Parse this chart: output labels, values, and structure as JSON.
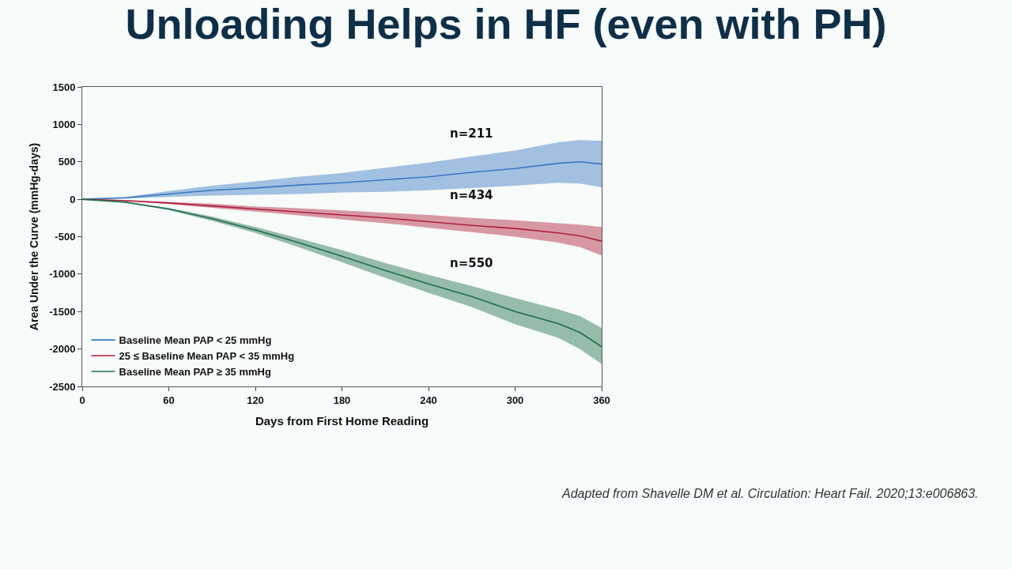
{
  "chart_data": {
    "type": "line",
    "title": "Unloading Helps in HF (even with PH)",
    "xlabel": "Days from First Home Reading",
    "ylabel": "Area Under the Curve (mmHg-days)",
    "x": [
      0,
      30,
      60,
      90,
      120,
      150,
      180,
      210,
      240,
      270,
      300,
      330,
      345,
      360
    ],
    "series": [
      {
        "name": "Baseline Mean PAP < 25 mmHg",
        "color": "#3a78c4",
        "values": [
          0,
          20,
          70,
          120,
          150,
          190,
          220,
          260,
          300,
          360,
          410,
          480,
          500,
          470
        ],
        "upper": [
          0,
          30,
          110,
          180,
          240,
          300,
          350,
          420,
          490,
          570,
          650,
          760,
          790,
          780
        ],
        "lower": [
          0,
          10,
          30,
          50,
          60,
          70,
          90,
          100,
          120,
          150,
          180,
          220,
          210,
          160
        ]
      },
      {
        "name": "25 ≤ Baseline Mean PAP < 35 mmHg",
        "color": "#b0203c",
        "values": [
          0,
          -20,
          -50,
          -90,
          -130,
          -170,
          -210,
          -250,
          -300,
          -350,
          -390,
          -450,
          -490,
          -560
        ],
        "upper": [
          0,
          -10,
          -35,
          -60,
          -95,
          -120,
          -150,
          -180,
          -210,
          -250,
          -280,
          -320,
          -340,
          -370
        ],
        "lower": [
          0,
          -20,
          -65,
          -115,
          -165,
          -215,
          -270,
          -320,
          -380,
          -440,
          -500,
          -580,
          -640,
          -750
        ]
      },
      {
        "name": "Baseline Mean PAP ≥ 35 mmHg",
        "color": "#1f6e4a",
        "values": [
          0,
          -40,
          -130,
          -260,
          -410,
          -580,
          -760,
          -950,
          -1130,
          -1300,
          -1500,
          -1660,
          -1780,
          -1970
        ],
        "upper": [
          0,
          -35,
          -115,
          -230,
          -370,
          -520,
          -680,
          -850,
          -1010,
          -1160,
          -1320,
          -1470,
          -1560,
          -1720
        ],
        "lower": [
          0,
          -45,
          -145,
          -290,
          -450,
          -640,
          -840,
          -1050,
          -1250,
          -1440,
          -1670,
          -1850,
          -2000,
          -2200
        ]
      }
    ],
    "xlim": [
      0,
      360
    ],
    "xticks": [
      0,
      60,
      120,
      180,
      240,
      300,
      360
    ],
    "ylim": [
      -2500,
      1500
    ],
    "yticks": [
      -2500,
      -2000,
      -1500,
      -1000,
      -500,
      0,
      500,
      1000,
      1500
    ],
    "grid": false,
    "legend": "bottom left",
    "marker": "none",
    "line_style": "solid",
    "annotations": [
      "n=211",
      "n=434",
      "n=550",
      "Adapted from Shavelle DM et al. Circulation: Heart Fail. 2020;13:e006863."
    ]
  }
}
